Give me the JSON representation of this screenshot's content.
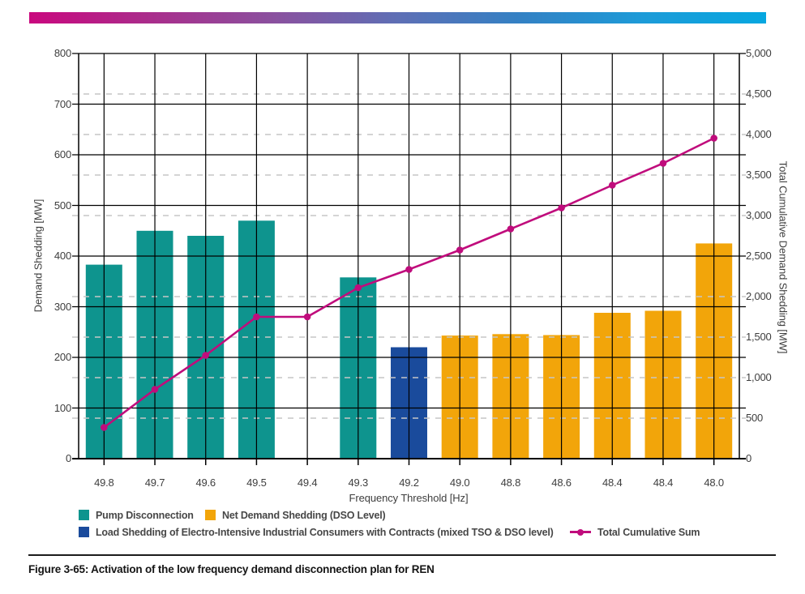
{
  "header": {
    "gradient_colors": [
      "#C9087E",
      "#A92E8C",
      "#8A519F",
      "#5E6FB5",
      "#3381C4",
      "#1D9BD8",
      "#06A7E0"
    ]
  },
  "chart_data": {
    "type": "bar+line",
    "categories": [
      "49.8",
      "49.7",
      "49.6",
      "49.5",
      "49.4",
      "49.3",
      "49.2",
      "49.0",
      "48.8",
      "48.6",
      "48.4",
      "48.4",
      "48.0"
    ],
    "series": [
      {
        "name": "Pump Disconnection",
        "type": "bar",
        "axis": "left",
        "color": "#0E948E",
        "values": [
          383,
          450,
          440,
          470,
          null,
          358,
          null,
          null,
          null,
          null,
          null,
          null,
          null
        ]
      },
      {
        "name": "Load Shedding of Electro-Intensive Industrial Consumers with Contracts (mixed TSO & DSO level)",
        "type": "bar",
        "axis": "left",
        "color": "#1A4B9C",
        "values": [
          null,
          null,
          null,
          null,
          null,
          null,
          220,
          null,
          null,
          null,
          null,
          null,
          null
        ]
      },
      {
        "name": "Net Demand Shedding (DSO Level)",
        "type": "bar",
        "axis": "left",
        "color": "#F2A50A",
        "values": [
          null,
          null,
          null,
          null,
          null,
          null,
          null,
          243,
          246,
          244,
          288,
          292,
          425
        ]
      },
      {
        "name": "Total Cumulative Sum",
        "type": "line",
        "axis": "right",
        "color": "#C00C7C",
        "values": [
          385,
          855,
          1275,
          1750,
          1750,
          2110,
          2335,
          2575,
          2835,
          3095,
          3375,
          3645,
          3955
        ]
      }
    ],
    "left_axis": {
      "label": "Demand Shedding [MW]",
      "min": 0,
      "max": 800,
      "tick_step": 100,
      "ticks": [
        "800",
        "700",
        "600",
        "500",
        "400",
        "300",
        "200",
        "100",
        "0"
      ]
    },
    "right_axis": {
      "label": "Total Cumulative Demand Shedding [MW]",
      "min": 0,
      "max": 5000,
      "tick_step": 500,
      "ticks": [
        "5,000",
        "4,500",
        "4,000",
        "3,500",
        "3,000",
        "2,500",
        "2,000",
        "1,500",
        "1,000",
        "500",
        "0"
      ]
    },
    "x_axis": {
      "label": "Frequency Threshold [Hz]"
    },
    "grid": {
      "solid_color": "#000000",
      "dashed_color": "#c6c6c6",
      "solid_left_values": [
        800,
        700,
        600,
        500,
        400,
        300,
        200,
        100
      ],
      "dashed_right_values": [
        4500,
        4000,
        3500,
        3000,
        2000,
        1500,
        1000,
        500
      ]
    }
  },
  "legend": {
    "items": [
      {
        "label": "Pump Disconnection",
        "marker": "square",
        "color": "#0E948E"
      },
      {
        "label": "Net Demand Shedding (DSO Level)",
        "marker": "square",
        "color": "#F2A50A"
      },
      {
        "label": "Load Shedding of Electro-Intensive Industrial Consumers with Contracts (mixed TSO & DSO level)",
        "marker": "square",
        "color": "#1A4B9C"
      },
      {
        "label": "Total Cumulative Sum",
        "marker": "line-dot",
        "color": "#C00C7C"
      }
    ]
  },
  "caption": {
    "text": "Figure 3-65: Activation of the low frequency demand disconnection plan for REN"
  }
}
